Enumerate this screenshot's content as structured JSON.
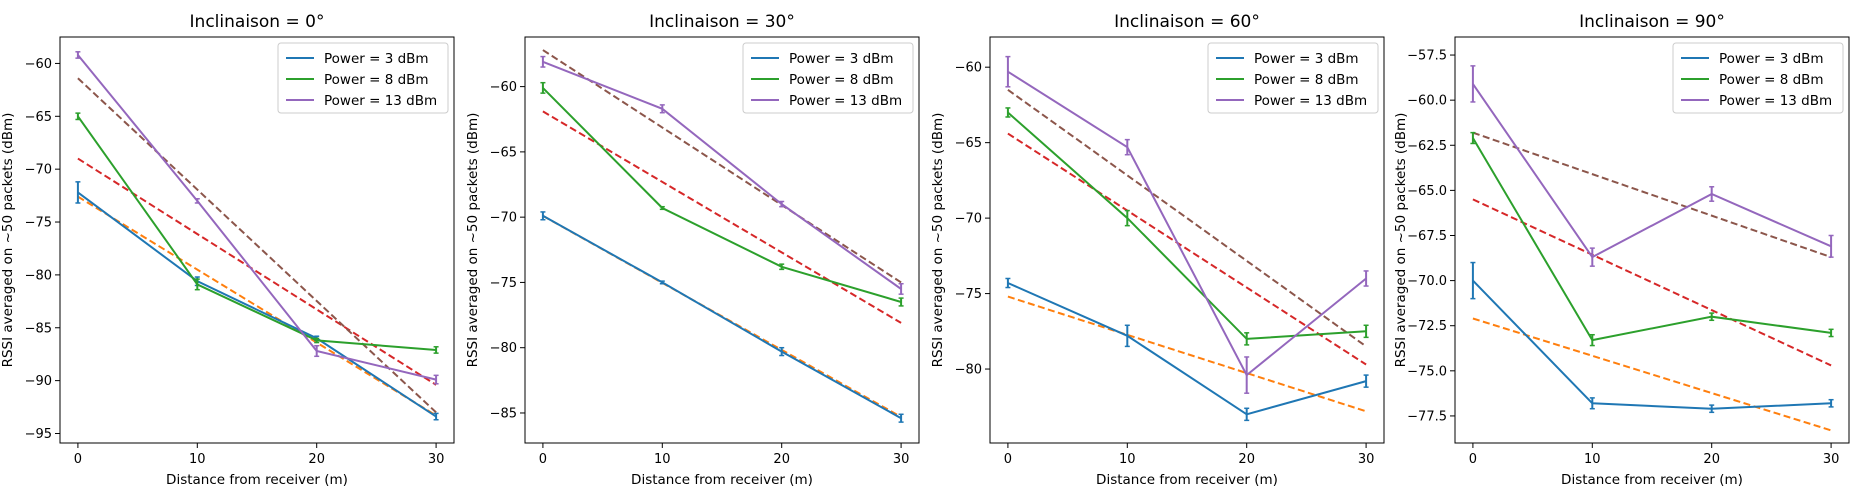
{
  "chart_data": [
    {
      "type": "line",
      "title": "Inclinaison = 0°",
      "xlabel": "Distance from receiver (m)",
      "ylabel": "RSSI averaged on ~50 packets (dBm)",
      "x": [
        0,
        10,
        20,
        30
      ],
      "xticks": [
        0,
        10,
        20,
        30
      ],
      "xlim": [
        -1.5,
        31.5
      ],
      "ylim": [
        -95.9,
        -57.5
      ],
      "yticks": [
        -95,
        -90,
        -85,
        -80,
        -75,
        -70,
        -65,
        -60
      ],
      "legend": "top-right",
      "series": [
        {
          "name": "Power = 3 dBm",
          "values": [
            -72.2,
            -80.6,
            -86.0,
            -93.4
          ],
          "errors": [
            1.0,
            0.4,
            0.2,
            0.3
          ],
          "color": "#1f77b4"
        },
        {
          "name": "Power = 8 dBm",
          "values": [
            -65.0,
            -80.9,
            -86.2,
            -87.1
          ],
          "errors": [
            0.3,
            0.5,
            0.2,
            0.3
          ],
          "color": "#2ca02c"
        },
        {
          "name": "Power = 13 dBm",
          "values": [
            -59.2,
            -73.0,
            -87.2,
            -89.9
          ],
          "errors": [
            0.3,
            0.2,
            0.5,
            0.4
          ],
          "color": "#9467bd"
        }
      ],
      "fits": [
        {
          "values": [
            -72.6,
            -93.3
          ],
          "color": "#ff7f0e"
        },
        {
          "values": [
            -69.0,
            -90.4
          ],
          "color": "#d62728"
        },
        {
          "values": [
            -61.4,
            -93.0
          ],
          "color": "#8c564b"
        }
      ]
    },
    {
      "type": "line",
      "title": "Inclinaison = 30°",
      "xlabel": "Distance from receiver (m)",
      "ylabel": "RSSI averaged on ~50 packets (dBm)",
      "x": [
        0,
        10,
        20,
        30
      ],
      "xticks": [
        0,
        10,
        20,
        30
      ],
      "xlim": [
        -1.5,
        31.5
      ],
      "ylim": [
        -87.3,
        -56.2
      ],
      "yticks": [
        -85,
        -80,
        -75,
        -70,
        -65,
        -60
      ],
      "legend": "top-right",
      "series": [
        {
          "name": "Power = 3 dBm",
          "values": [
            -69.9,
            -75.0,
            -80.3,
            -85.4
          ],
          "errors": [
            0.3,
            0.1,
            0.3,
            0.3
          ],
          "color": "#1f77b4"
        },
        {
          "name": "Power = 8 dBm",
          "values": [
            -60.1,
            -69.3,
            -73.8,
            -76.5
          ],
          "errors": [
            0.4,
            0.1,
            0.2,
            0.3
          ],
          "color": "#2ca02c"
        },
        {
          "name": "Power = 13 dBm",
          "values": [
            -58.1,
            -61.7,
            -69.0,
            -75.5
          ],
          "errors": [
            0.4,
            0.3,
            0.2,
            0.4
          ],
          "color": "#9467bd"
        }
      ],
      "fits": [
        {
          "values": [
            -69.9,
            -85.3
          ],
          "color": "#ff7f0e"
        },
        {
          "values": [
            -61.9,
            -78.1
          ],
          "color": "#d62728"
        },
        {
          "values": [
            -57.2,
            -75.0
          ],
          "color": "#8c564b"
        }
      ]
    },
    {
      "type": "line",
      "title": "Inclinaison = 60°",
      "xlabel": "Distance from receiver (m)",
      "ylabel": "RSSI averaged on ~50 packets (dBm)",
      "x": [
        0,
        10,
        20,
        30
      ],
      "xticks": [
        0,
        10,
        20,
        30
      ],
      "xlim": [
        -1.5,
        31.5
      ],
      "ylim": [
        -84.9,
        -58.0
      ],
      "yticks": [
        -80,
        -75,
        -70,
        -65,
        -60
      ],
      "legend": "top-right",
      "series": [
        {
          "name": "Power = 3 dBm",
          "values": [
            -74.3,
            -77.8,
            -83.0,
            -80.8
          ],
          "errors": [
            0.3,
            0.7,
            0.4,
            0.4
          ],
          "color": "#1f77b4"
        },
        {
          "name": "Power = 8 dBm",
          "values": [
            -63.0,
            -70.0,
            -78.0,
            -77.5
          ],
          "errors": [
            0.3,
            0.5,
            0.4,
            0.4
          ],
          "color": "#2ca02c"
        },
        {
          "name": "Power = 13 dBm",
          "values": [
            -60.3,
            -65.3,
            -80.4,
            -74.0
          ],
          "errors": [
            1.0,
            0.5,
            1.2,
            0.5
          ],
          "color": "#9467bd"
        }
      ],
      "fits": [
        {
          "values": [
            -75.2,
            -82.8
          ],
          "color": "#ff7f0e"
        },
        {
          "values": [
            -64.4,
            -79.7
          ],
          "color": "#d62728"
        },
        {
          "values": [
            -61.5,
            -78.5
          ],
          "color": "#8c564b"
        }
      ]
    },
    {
      "type": "line",
      "title": "Inclinaison = 90°",
      "xlabel": "Distance from receiver (m)",
      "ylabel": "RSSI averaged on ~50 packets (dBm)",
      "x": [
        0,
        10,
        20,
        30
      ],
      "xticks": [
        0,
        10,
        20,
        30
      ],
      "xlim": [
        -1.5,
        31.5
      ],
      "ylim": [
        -79.0,
        -56.5
      ],
      "yticks": [
        -77.5,
        -75.0,
        -72.5,
        -70.0,
        -67.5,
        -65.0,
        -62.5,
        -60.0,
        -57.5
      ],
      "legend": "top-right",
      "series": [
        {
          "name": "Power = 3 dBm",
          "values": [
            -70.0,
            -76.8,
            -77.1,
            -76.8
          ],
          "errors": [
            1.0,
            0.3,
            0.2,
            0.2
          ],
          "color": "#1f77b4"
        },
        {
          "name": "Power = 8 dBm",
          "values": [
            -62.1,
            -73.3,
            -72.0,
            -72.9
          ],
          "errors": [
            0.3,
            0.3,
            0.2,
            0.2
          ],
          "color": "#2ca02c"
        },
        {
          "name": "Power = 13 dBm",
          "values": [
            -59.1,
            -68.7,
            -65.2,
            -68.1
          ],
          "errors": [
            1.0,
            0.5,
            0.4,
            0.6
          ],
          "color": "#9467bd"
        }
      ],
      "fits": [
        {
          "values": [
            -72.1,
            -78.3
          ],
          "color": "#ff7f0e"
        },
        {
          "values": [
            -65.5,
            -74.7
          ],
          "color": "#d62728"
        },
        {
          "values": [
            -61.8,
            -68.7
          ],
          "color": "#8c564b"
        }
      ]
    }
  ]
}
